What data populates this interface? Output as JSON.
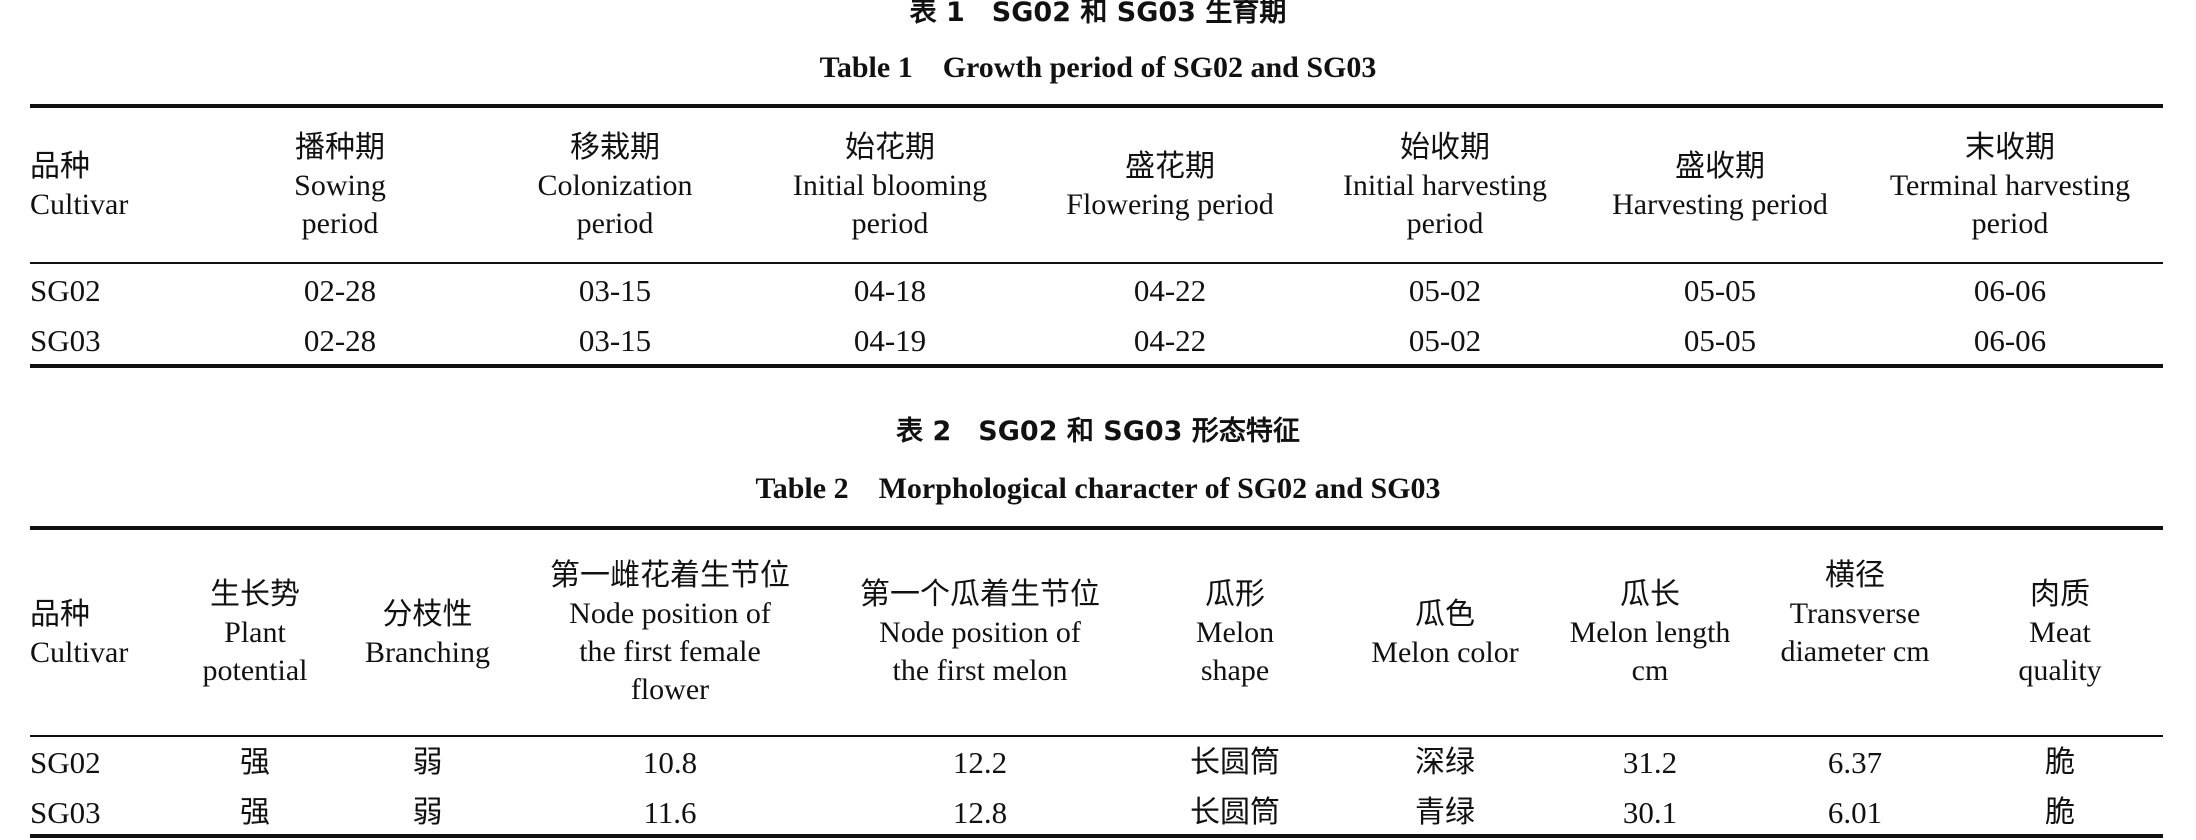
{
  "table1": {
    "caption_cn": "表 1　SG02 和 SG03 生育期",
    "caption_en": "Table 1　Growth period of SG02 and SG03",
    "headers": [
      {
        "cn": "品种",
        "en": "Cultivar"
      },
      {
        "cn": "播种期",
        "en": "Sowing period"
      },
      {
        "cn": "移栽期",
        "en": "Colonization period"
      },
      {
        "cn": "始花期",
        "en": "Initial blooming period"
      },
      {
        "cn": "盛花期",
        "en": "Flowering period"
      },
      {
        "cn": "始收期",
        "en": "Initial harvesting period"
      },
      {
        "cn": "盛收期",
        "en": "Harvesting period"
      },
      {
        "cn": "末收期",
        "en": "Terminal harvesting period"
      }
    ],
    "rows": [
      [
        "SG02",
        "02-28",
        "03-15",
        "04-18",
        "04-22",
        "05-02",
        "05-05",
        "06-06"
      ],
      [
        "SG03",
        "02-28",
        "03-15",
        "04-19",
        "04-22",
        "05-02",
        "05-05",
        "06-06"
      ]
    ]
  },
  "table2": {
    "caption_cn": "表 2　SG02 和 SG03 形态特征",
    "caption_en": "Table 2　Morphological character of SG02 and SG03",
    "headers": [
      {
        "cn": "品种",
        "en": "Cultivar"
      },
      {
        "cn": "生长势",
        "en": "Plant potential"
      },
      {
        "cn": "分枝性",
        "en": "Branching"
      },
      {
        "cn": "第一雌花着生节位",
        "en": "Node position of the first female flower"
      },
      {
        "cn": "第一个瓜着生节位",
        "en": "Node position of the first melon"
      },
      {
        "cn": "瓜形",
        "en": "Melon shape"
      },
      {
        "cn": "瓜色",
        "en": "Melon color"
      },
      {
        "cn": "瓜长",
        "en": "Melon length cm"
      },
      {
        "cn": "横径",
        "en": "Transverse diameter cm"
      },
      {
        "cn": "肉质",
        "en": "Meat quality"
      }
    ],
    "rows": [
      [
        "SG02",
        "强",
        "弱",
        "10.8",
        "12.2",
        "长圆筒",
        "深绿",
        "31.2",
        "6.37",
        "脆"
      ],
      [
        "SG03",
        "强",
        "弱",
        "11.6",
        "12.8",
        "长圆筒",
        "青绿",
        "30.1",
        "6.01",
        "脆"
      ]
    ]
  }
}
